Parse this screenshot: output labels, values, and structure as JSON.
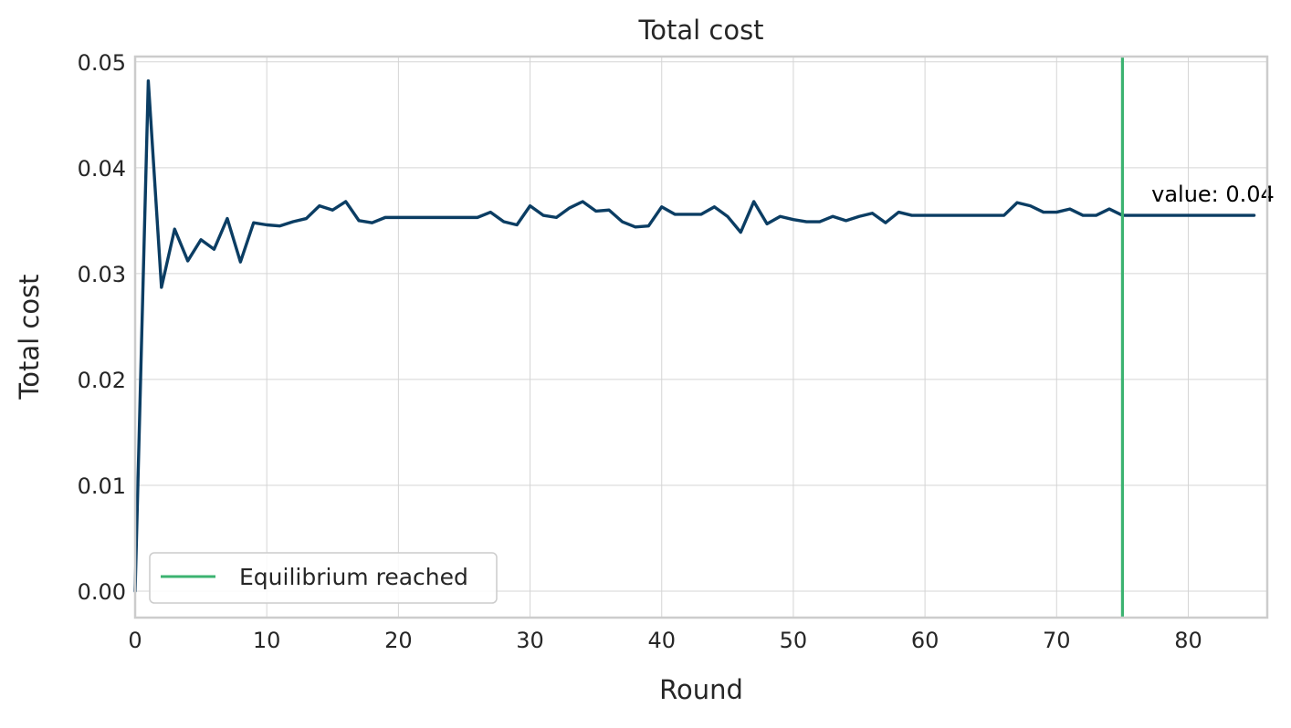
{
  "chart_data": {
    "type": "line",
    "title": "Total cost",
    "xlabel": "Round",
    "ylabel": "Total cost",
    "xlim": [
      0,
      86
    ],
    "ylim": [
      -0.0025,
      0.0505
    ],
    "x_ticks": [
      0,
      10,
      20,
      30,
      40,
      50,
      60,
      70,
      80
    ],
    "y_ticks": [
      0.0,
      0.01,
      0.02,
      0.03,
      0.04,
      0.05
    ],
    "grid": true,
    "legend_position": "lower-left",
    "series": [
      {
        "color": "#0b3d63",
        "x": [
          0,
          1,
          2,
          3,
          4,
          5,
          6,
          7,
          8,
          9,
          10,
          11,
          12,
          13,
          14,
          15,
          16,
          17,
          18,
          19,
          20,
          21,
          22,
          23,
          24,
          25,
          26,
          27,
          28,
          29,
          30,
          31,
          32,
          33,
          34,
          35,
          36,
          37,
          38,
          39,
          40,
          41,
          42,
          43,
          44,
          45,
          46,
          47,
          48,
          49,
          50,
          51,
          52,
          53,
          54,
          55,
          56,
          57,
          58,
          59,
          60,
          61,
          62,
          63,
          64,
          65,
          66,
          67,
          68,
          69,
          70,
          71,
          72,
          73,
          74,
          75,
          76,
          77,
          78,
          79,
          80,
          81,
          82,
          83,
          84,
          85
        ],
        "y": [
          0.0,
          0.0482,
          0.0287,
          0.0342,
          0.0312,
          0.0332,
          0.0323,
          0.0352,
          0.0311,
          0.0348,
          0.0346,
          0.0345,
          0.0349,
          0.0352,
          0.0364,
          0.036,
          0.0368,
          0.035,
          0.0348,
          0.0353,
          0.0353,
          0.0353,
          0.0353,
          0.0353,
          0.0353,
          0.0353,
          0.0353,
          0.0358,
          0.0349,
          0.0346,
          0.0364,
          0.0355,
          0.0353,
          0.0362,
          0.0368,
          0.0359,
          0.036,
          0.0349,
          0.0344,
          0.0345,
          0.0363,
          0.0356,
          0.0356,
          0.0356,
          0.0363,
          0.0354,
          0.0339,
          0.0368,
          0.0347,
          0.0354,
          0.0351,
          0.0349,
          0.0349,
          0.0354,
          0.035,
          0.0354,
          0.0357,
          0.0348,
          0.0358,
          0.0355,
          0.0355,
          0.0355,
          0.0355,
          0.0355,
          0.0355,
          0.0355,
          0.0355,
          0.0367,
          0.0364,
          0.0358,
          0.0358,
          0.0361,
          0.0355,
          0.0355,
          0.0361,
          0.0355,
          0.0355,
          0.0355,
          0.0355,
          0.0355,
          0.0355,
          0.0355,
          0.0355,
          0.0355,
          0.0355,
          0.0355
        ]
      }
    ],
    "vlines": [
      {
        "x": 75,
        "color": "#3cb371",
        "label": "Equilibrium reached"
      }
    ],
    "annotations": [
      {
        "text": "value: 0.04",
        "x": 77.2,
        "y": 0.0368
      }
    ],
    "colors": {
      "line": "#0b3d63",
      "equilibrium": "#3cb371",
      "grid": "#d5d5d5",
      "frame": "#cccccc"
    }
  }
}
